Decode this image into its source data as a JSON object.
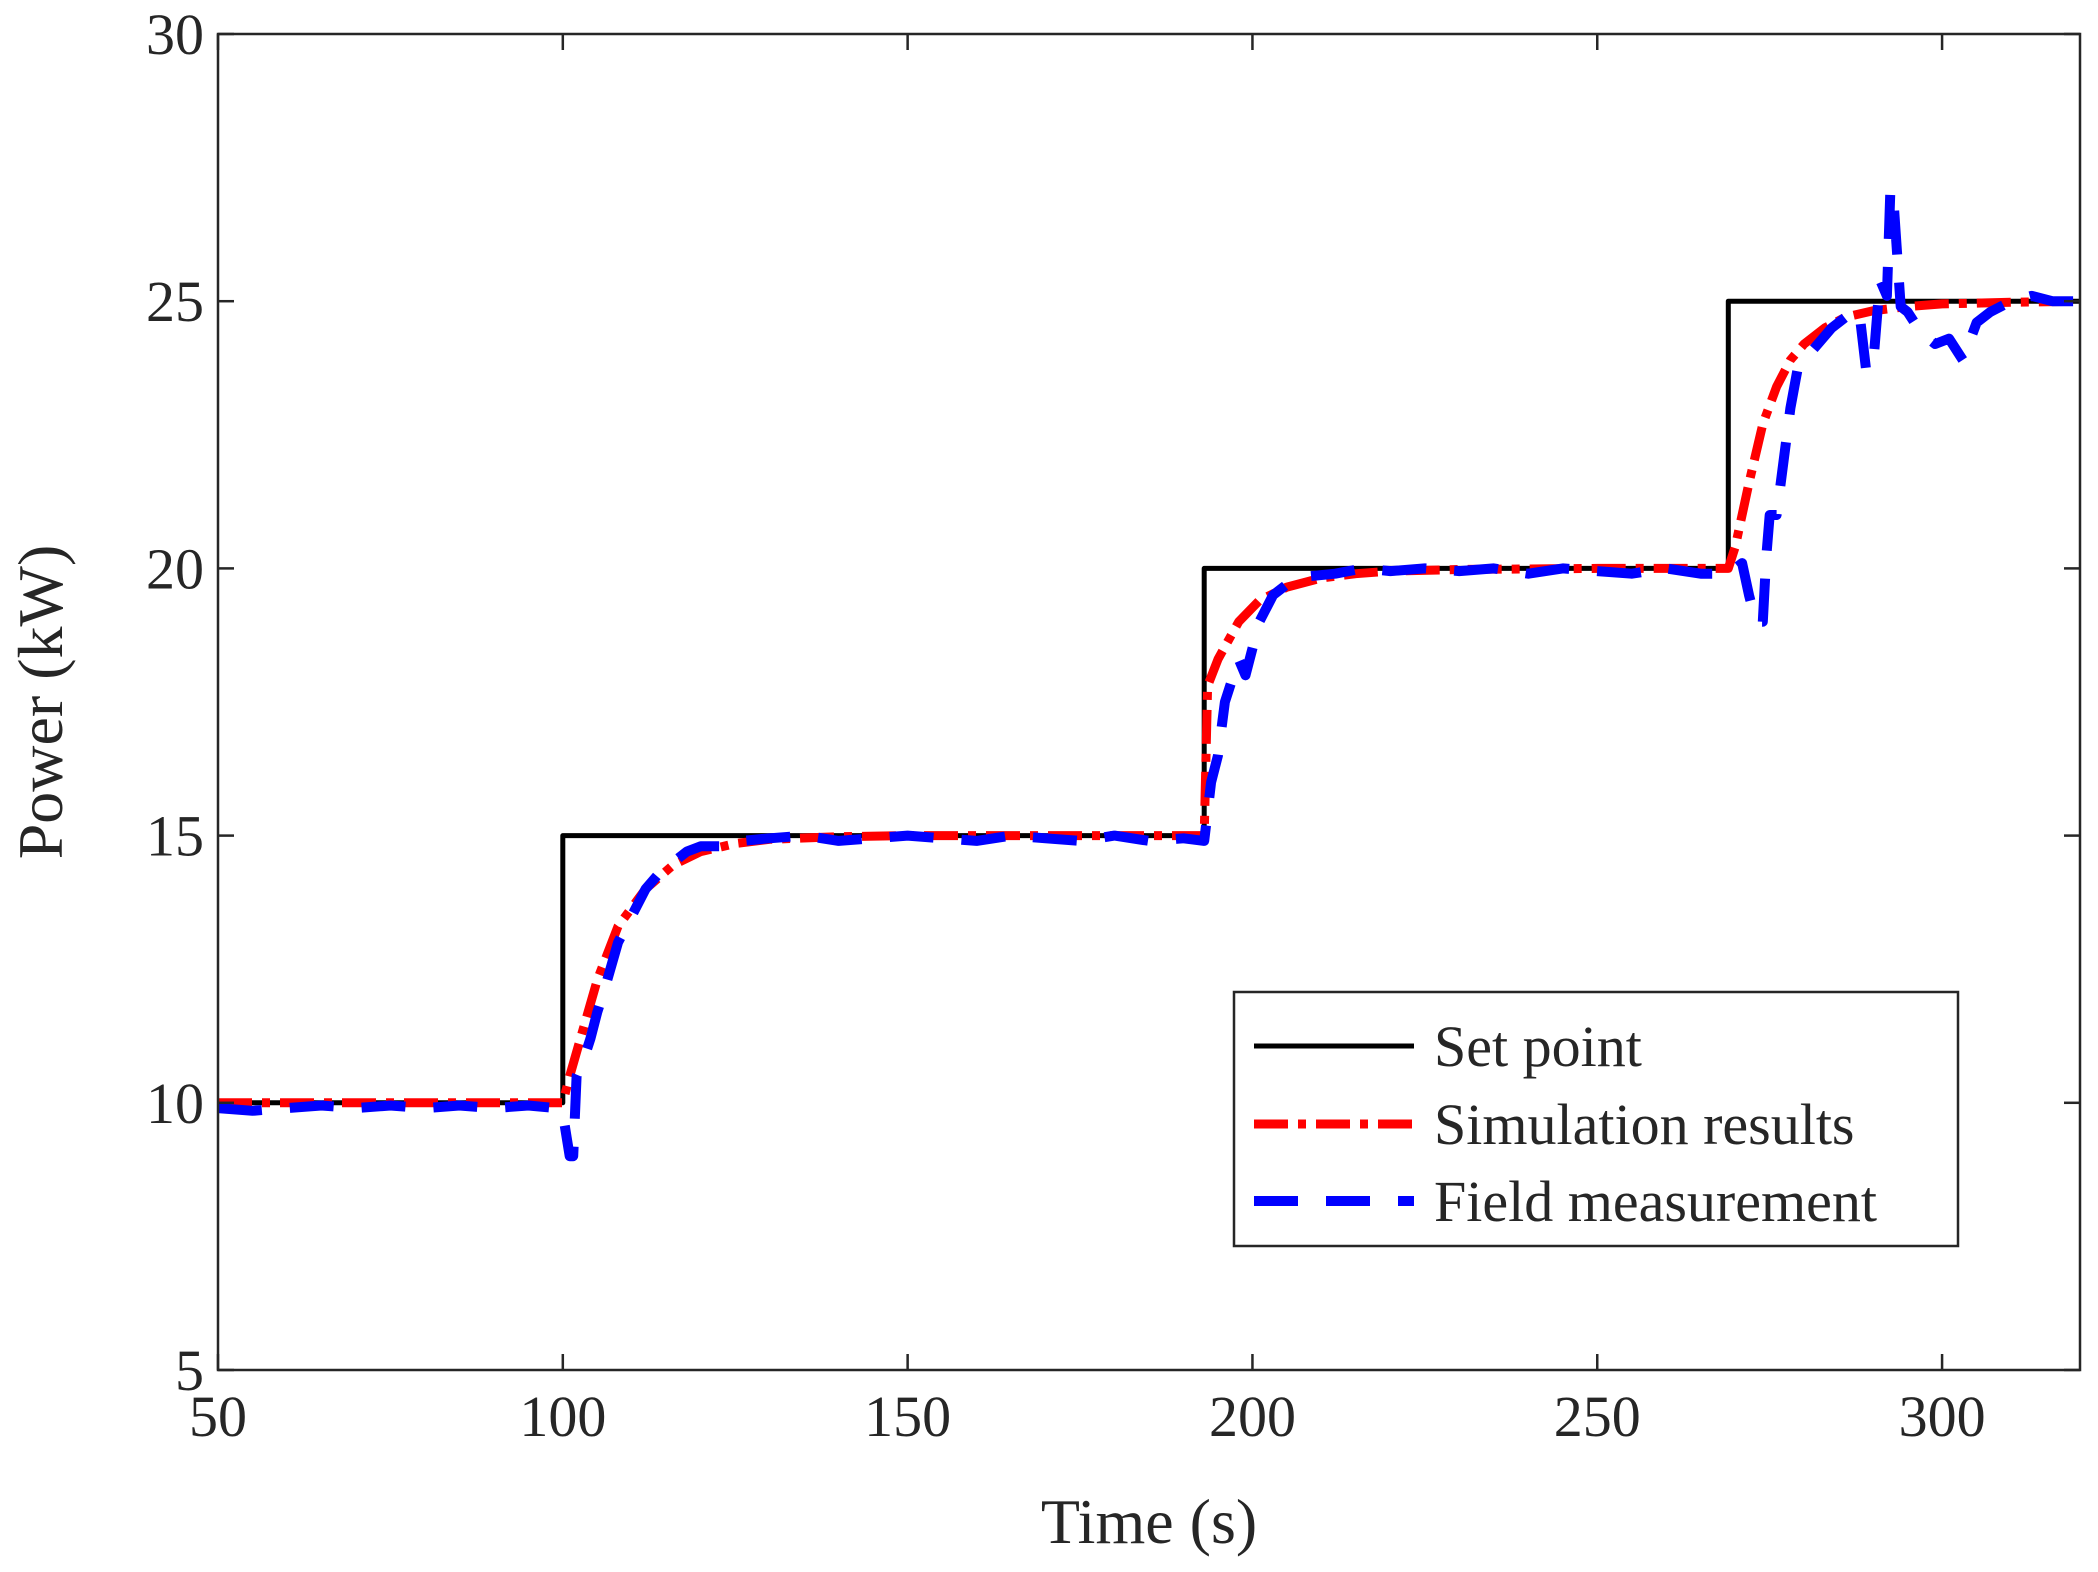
{
  "chart_data": {
    "type": "line",
    "xlabel": "Time (s)",
    "ylabel": "Power (kW)",
    "xlim": [
      50,
      320
    ],
    "ylim": [
      5,
      30
    ],
    "xticks": [
      50,
      100,
      150,
      200,
      250,
      300
    ],
    "yticks": [
      5,
      10,
      15,
      20,
      25,
      30
    ],
    "grid": false,
    "legend_position": "bottom-right",
    "series": [
      {
        "name": "Set point",
        "style": "solid",
        "color": "#000000",
        "x": [
          50,
          100,
          100,
          193,
          193,
          269,
          269,
          320
        ],
        "y": [
          10,
          10,
          15,
          15,
          20,
          20,
          25,
          25
        ]
      },
      {
        "name": "Simulation results",
        "style": "dashdot",
        "color": "#ff0000",
        "x": [
          50,
          100,
          101,
          103,
          105,
          108,
          112,
          116,
          120,
          125,
          130,
          140,
          150,
          170,
          190,
          193,
          193.5,
          195,
          198,
          201,
          205,
          210,
          215,
          220,
          230,
          250,
          269,
          270,
          272,
          274,
          276,
          278,
          280,
          283,
          286,
          290,
          295,
          300,
          310,
          320
        ],
        "y": [
          10,
          10,
          10.5,
          11.4,
          12.3,
          13.3,
          14.0,
          14.45,
          14.7,
          14.85,
          14.93,
          14.98,
          15,
          15,
          15,
          15,
          17.8,
          18.3,
          19.0,
          19.4,
          19.65,
          19.82,
          19.9,
          19.95,
          19.98,
          20,
          20,
          20.4,
          21.6,
          22.7,
          23.4,
          23.9,
          24.2,
          24.5,
          24.7,
          24.82,
          24.9,
          24.95,
          24.98,
          25
        ]
      },
      {
        "name": "Field measurement",
        "style": "dashed",
        "color": "#0000ff",
        "x": [
          50,
          55,
          60,
          65,
          70,
          75,
          80,
          85,
          90,
          95,
          99,
          100,
          101,
          101.5,
          102,
          103,
          104,
          105,
          106,
          108,
          110,
          112,
          114,
          116,
          118,
          120,
          123,
          126,
          130,
          135,
          140,
          145,
          150,
          155,
          160,
          165,
          170,
          175,
          180,
          185,
          190,
          193,
          194,
          195,
          196,
          198,
          199,
          200,
          201,
          203,
          205,
          208,
          212,
          216,
          220,
          225,
          230,
          235,
          240,
          245,
          250,
          255,
          260,
          265,
          269,
          271,
          272,
          273,
          274,
          274.5,
          275,
          276,
          277,
          278,
          279,
          280,
          282,
          284,
          286,
          288,
          289,
          290,
          291,
          292,
          292.5,
          293,
          294,
          295,
          297,
          299,
          301,
          303,
          305,
          307,
          310,
          313,
          316,
          320
        ],
        "y": [
          9.9,
          9.85,
          9.9,
          9.95,
          9.9,
          9.95,
          9.9,
          9.95,
          9.9,
          9.95,
          9.9,
          9.8,
          9.0,
          9.0,
          10.5,
          10.8,
          11.2,
          11.7,
          12.1,
          13.0,
          13.5,
          14.0,
          14.3,
          14.5,
          14.7,
          14.8,
          14.8,
          14.9,
          14.95,
          15.0,
          14.9,
          14.95,
          15.0,
          14.95,
          14.9,
          15.0,
          14.95,
          14.9,
          15.0,
          14.9,
          14.95,
          14.9,
          16.0,
          16.5,
          17.5,
          18.3,
          18.0,
          18.5,
          19.0,
          19.5,
          19.7,
          19.85,
          19.9,
          20.0,
          19.95,
          20.0,
          19.95,
          20.0,
          19.9,
          20.0,
          19.95,
          19.9,
          20.0,
          19.9,
          19.9,
          20.1,
          19.5,
          19.0,
          19.0,
          20.2,
          21.0,
          21.0,
          22.0,
          23.0,
          23.7,
          23.9,
          24.2,
          24.5,
          24.7,
          24.8,
          23.7,
          23.8,
          25.4,
          25.1,
          27.1,
          26.8,
          24.9,
          24.8,
          24.4,
          24.2,
          24.3,
          23.9,
          24.6,
          24.8,
          25.0,
          25.1,
          25.0,
          25.0
        ]
      }
    ]
  }
}
